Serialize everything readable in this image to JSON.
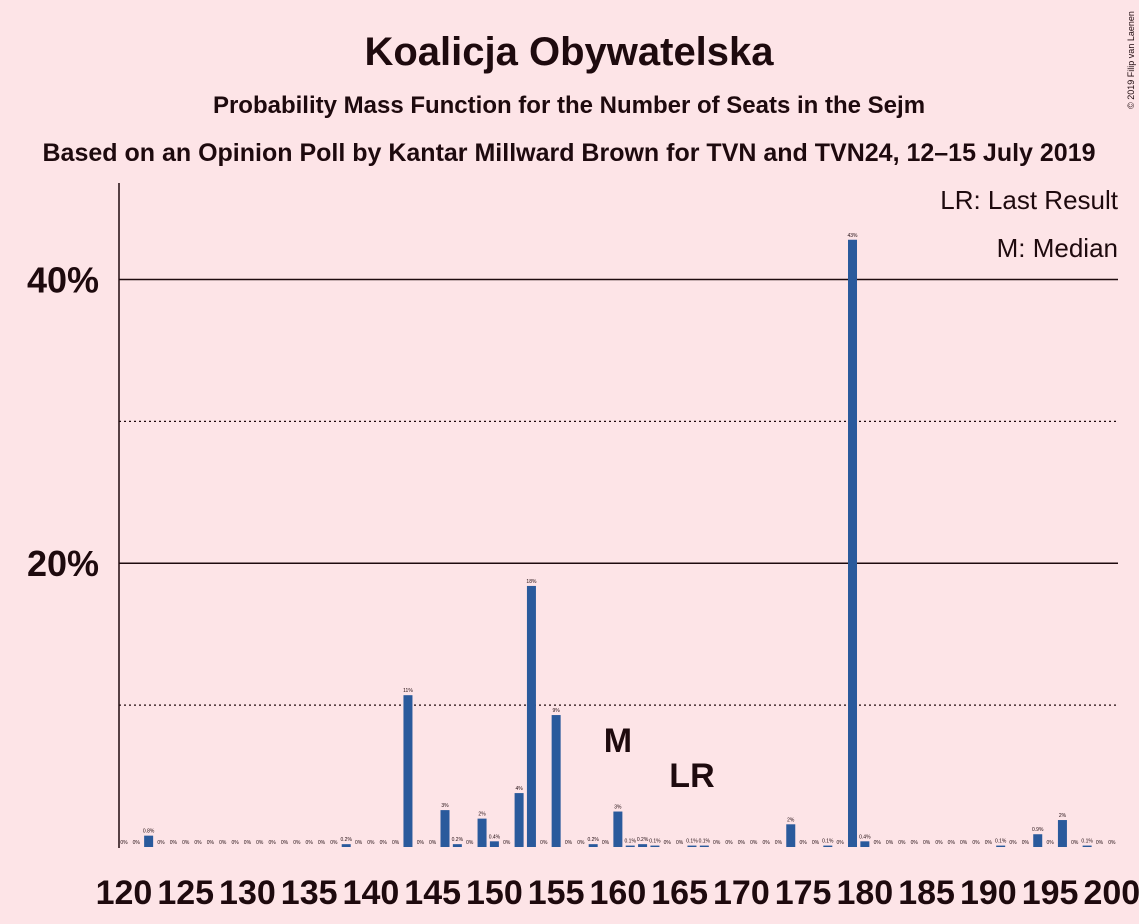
{
  "chart_data": {
    "type": "bar",
    "title": "Koalicja Obywatelska",
    "subtitle": "Probability Mass Function for the Number of Seats in the Sejm",
    "caption": "Based on an Opinion Poll by Kantar Millward Brown for TVN and TVN24, 12–15 July 2019",
    "copyright": "© 2019 Filip van Laenen",
    "legend_notes": [
      "LR: Last Result",
      "M: Median"
    ],
    "annotations": [
      {
        "label": "M",
        "x": 160
      },
      {
        "label": "LR",
        "x": 166
      }
    ],
    "color": "#2a5a9c",
    "x": [
      120,
      121,
      122,
      123,
      124,
      125,
      126,
      127,
      128,
      129,
      130,
      131,
      132,
      133,
      134,
      135,
      136,
      137,
      138,
      139,
      140,
      141,
      142,
      143,
      144,
      145,
      146,
      147,
      148,
      149,
      150,
      151,
      152,
      153,
      154,
      155,
      156,
      157,
      158,
      159,
      160,
      161,
      162,
      163,
      164,
      165,
      166,
      167,
      168,
      169,
      170,
      171,
      172,
      173,
      174,
      175,
      176,
      177,
      178,
      179,
      180,
      181,
      182,
      183,
      184,
      185,
      186,
      187,
      188,
      189,
      190,
      191,
      192,
      193,
      194,
      195,
      196,
      197,
      198,
      199,
      200
    ],
    "values": [
      0,
      0,
      0.8,
      0,
      0,
      0,
      0,
      0,
      0,
      0,
      0,
      0,
      0,
      0,
      0,
      0,
      0,
      0,
      0.2,
      0,
      0,
      0,
      0,
      10.7,
      0,
      0,
      2.6,
      0.2,
      0,
      2.0,
      0.4,
      0,
      3.8,
      18.4,
      0,
      9.3,
      0,
      0,
      0.2,
      0,
      2.5,
      0.1,
      0.2,
      0.1,
      0,
      0,
      0.1,
      0.1,
      0,
      0,
      0,
      0,
      0,
      0,
      1.6,
      0,
      0,
      0.1,
      0,
      42.8,
      0.4,
      0,
      0,
      0,
      0,
      0,
      0,
      0,
      0,
      0,
      0,
      0.1,
      0,
      0,
      0.9,
      0,
      1.9,
      0,
      0.1,
      0,
      0
    ],
    "value_labels": [
      "0%",
      "0%",
      "0.8%",
      "0%",
      "0%",
      "0%",
      "0%",
      "0%",
      "0%",
      "0%",
      "0%",
      "0%",
      "0%",
      "0%",
      "0%",
      "0%",
      "0%",
      "0%",
      "0.2%",
      "0%",
      "0%",
      "0%",
      "0%",
      "11%",
      "0%",
      "0%",
      "3%",
      "0.2%",
      "0%",
      "2%",
      "0.4%",
      "0%",
      "4%",
      "18%",
      "0%",
      "9%",
      "0%",
      "0%",
      "0.2%",
      "0%",
      "3%",
      "0.1%",
      "0.2%",
      "0.1%",
      "0%",
      "0%",
      "0.1%",
      "0.1%",
      "0%",
      "0%",
      "0%",
      "0%",
      "0%",
      "0%",
      "2%",
      "0%",
      "0%",
      "0.1%",
      "0%",
      "43%",
      "0.4%",
      "0%",
      "0%",
      "0%",
      "0%",
      "0%",
      "0%",
      "0%",
      "0%",
      "0%",
      "0%",
      "0.1%",
      "0%",
      "0%",
      "0.9%",
      "0%",
      "2%",
      "0%",
      "0.1%",
      "0%",
      "0%"
    ],
    "xlim": [
      119.6,
      200.5
    ],
    "xticks": [
      120,
      125,
      130,
      135,
      140,
      145,
      150,
      155,
      160,
      165,
      170,
      175,
      180,
      185,
      190,
      195,
      200
    ],
    "ylim": [
      0,
      46.8
    ],
    "yticks": [
      {
        "value": 20,
        "label": "20%"
      },
      {
        "value": 40,
        "label": "40%"
      }
    ],
    "minor_yticks": [
      10,
      30
    ],
    "grid": true
  }
}
